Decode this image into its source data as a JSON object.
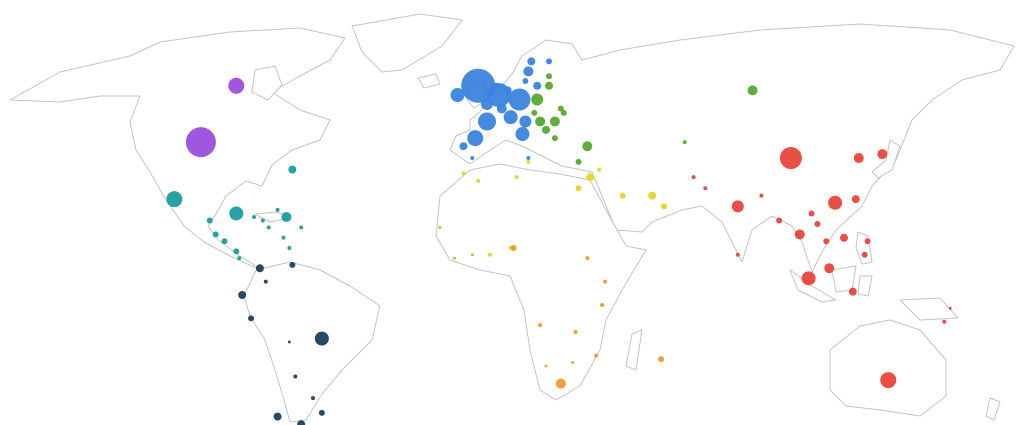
{
  "chart_data": {
    "type": "bubble-map",
    "series": [
      {
        "color": "#3b84dc",
        "x": [
          -4,
          3,
          10,
          -11,
          -1,
          7,
          -1,
          4,
          12,
          -5,
          11,
          -9,
          13,
          14,
          20,
          16,
          12,
          6,
          2,
          -6,
          13
        ],
        "values": [
          56,
          54,
          53,
          54,
          48,
          49,
          52,
          51,
          48,
          44,
          45,
          42,
          59,
          61,
          61,
          56,
          57,
          55,
          56,
          39,
          39
        ],
        "sizes": [
          289,
          144,
          121,
          49,
          81,
          49,
          36,
          25,
          36,
          64,
          49,
          16,
          25,
          16,
          9,
          16,
          9,
          16,
          9,
          4,
          4
        ]
      },
      {
        "color": "#5aa832",
        "x": [
          16,
          22,
          17,
          33,
          19,
          24,
          20,
          25,
          22,
          20,
          89,
          66,
          30,
          15
        ],
        "values": [
          53,
          48,
          48,
          42,
          46,
          51,
          56,
          50,
          44,
          58,
          55,
          43,
          38,
          50
        ],
        "sizes": [
          36,
          25,
          25,
          25,
          16,
          9,
          16,
          9,
          9,
          9,
          25,
          4,
          9,
          9
        ]
      },
      {
        "color": "#9b4ddb",
        "x": [
          -98,
          -86
        ],
        "values": [
          43,
          56
        ],
        "sizes": [
          225,
          64
        ]
      },
      {
        "color": "#1c9e9e",
        "x": [
          -107,
          -86,
          -69,
          -67,
          -95,
          -93,
          -90,
          -86,
          -85,
          -77,
          -75,
          -70,
          -68,
          -72,
          -64,
          -80
        ],
        "values": [
          28,
          24,
          23,
          36,
          22,
          18,
          16,
          13,
          11,
          22,
          20,
          17,
          14,
          25,
          20,
          23
        ],
        "sizes": [
          64,
          49,
          25,
          16,
          9,
          9,
          9,
          9,
          4,
          4,
          4,
          4,
          4,
          4,
          4,
          4
        ]
      },
      {
        "color": "#1f3f5f",
        "x": [
          -57,
          -78,
          -84,
          -72,
          -64,
          -81,
          -67,
          -57,
          -60,
          -66,
          -68,
          -76
        ],
        "values": [
          -13,
          8,
          0,
          -35,
          -37,
          -7,
          9,
          -34,
          -30,
          -24,
          -14,
          4
        ],
        "sizes": [
          49,
          16,
          16,
          16,
          16,
          9,
          9,
          9,
          4,
          4,
          2,
          4
        ]
      },
      {
        "color": "#e6d52a",
        "x": [
          34,
          30,
          55,
          45,
          59,
          9,
          -4,
          13,
          37,
          -9,
          7,
          0
        ],
        "values": [
          34,
          31,
          29,
          29,
          26,
          34,
          33,
          38,
          36,
          35,
          14,
          12
        ],
        "sizes": [
          16,
          9,
          16,
          9,
          9,
          4,
          4,
          4,
          4,
          4,
          4,
          4
        ]
      },
      {
        "color": "#f0992a",
        "x": [
          24,
          58,
          8,
          39,
          38,
          33,
          17,
          29,
          -12,
          -6,
          -17,
          36,
          28,
          19
        ],
        "values": [
          -26,
          -19,
          14,
          4,
          -3,
          11,
          -9,
          -11,
          11,
          12,
          20,
          -18,
          -20,
          -21
        ],
        "sizes": [
          25,
          9,
          9,
          4,
          4,
          4,
          4,
          4,
          2,
          2,
          2,
          4,
          2,
          2
        ]
      },
      {
        "color": "#e8463a",
        "x": [
          102,
          135,
          117,
          84,
          108,
          125,
          133,
          115,
          105,
          124,
          111,
          120,
          123,
          128,
          127,
          98,
          109,
          69,
          84,
          92,
          73,
          114,
          154,
          156
        ],
        "values": [
          39,
          -25,
          27,
          26,
          5,
          39,
          40,
          8,
          18,
          28,
          21,
          17,
          1,
          16,
          12,
          22,
          24,
          34,
          12,
          29,
          31,
          16,
          -8,
          -4
        ],
        "sizes": [
          121,
          64,
          49,
          36,
          49,
          25,
          25,
          25,
          25,
          16,
          9,
          16,
          16,
          9,
          9,
          9,
          9,
          4,
          4,
          4,
          4,
          9,
          4,
          2
        ]
      }
    ]
  }
}
